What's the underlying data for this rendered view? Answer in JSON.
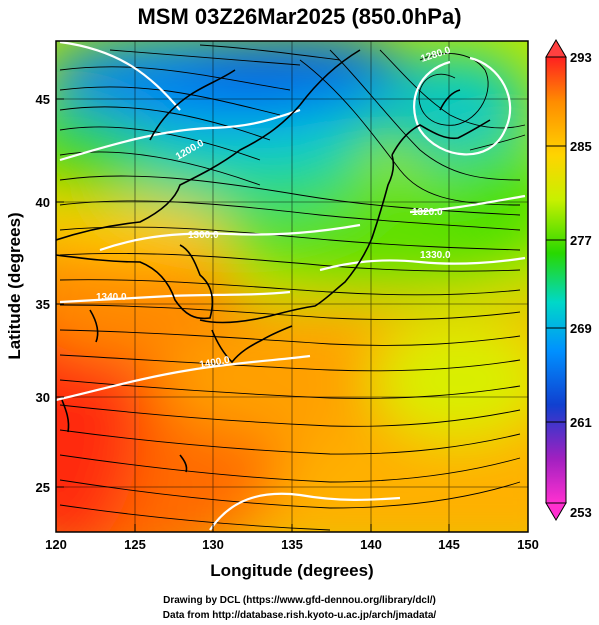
{
  "title": "MSM 03Z26Mar2025 (850.0hPa)",
  "xaxis": {
    "label": "Longitude (degrees)",
    "ticks": [
      "120",
      "125",
      "130",
      "135",
      "140",
      "145",
      "150"
    ],
    "range": [
      120,
      150
    ]
  },
  "yaxis": {
    "label": "Latitude  (degrees)",
    "ticks": [
      "25",
      "30",
      "35",
      "40",
      "45"
    ],
    "range": [
      22.4,
      47.6
    ]
  },
  "colorbar": {
    "labels": [
      "293",
      "285",
      "277",
      "269",
      "261",
      "253"
    ],
    "range": [
      253,
      293
    ],
    "colors": [
      "#ff2020",
      "#ff8c00",
      "#ffd400",
      "#c8f000",
      "#28d800",
      "#00d8c8",
      "#0090ff",
      "#1040d0",
      "#a020c0",
      "#ff30d0"
    ]
  },
  "contours": [
    {
      "label": "1280.0",
      "lon": 143.6,
      "lat": 46.3
    },
    {
      "label": "1200.0",
      "lon": 129.8,
      "lat": 42.2
    },
    {
      "label": "1320.0",
      "lon": 143.1,
      "lat": 40.4
    },
    {
      "label": "1300.0",
      "lon": 131.4,
      "lat": 38.6
    },
    {
      "label": "1330.0",
      "lon": 142.9,
      "lat": 37.8
    },
    {
      "label": "1340.0",
      "lon": 125.3,
      "lat": 34.1
    },
    {
      "label": "1400.0",
      "lon": 130.9,
      "lat": 32.2
    }
  ],
  "credits": {
    "line1": "Drawing by DCL (https://www.gfd-dennou.org/library/dcl/)",
    "line2": "Data from http://database.rish.kyoto-u.ac.jp/arch/jmadata/"
  }
}
